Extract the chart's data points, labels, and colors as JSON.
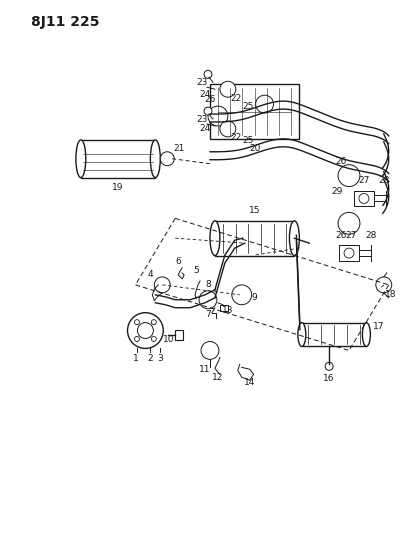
{
  "title": "8J11 225",
  "bg_color": "#ffffff",
  "line_color": "#1a1a1a",
  "title_fontsize": 10,
  "label_fontsize": 6.5,
  "figsize": [
    4.09,
    5.33
  ],
  "dpi": 100
}
